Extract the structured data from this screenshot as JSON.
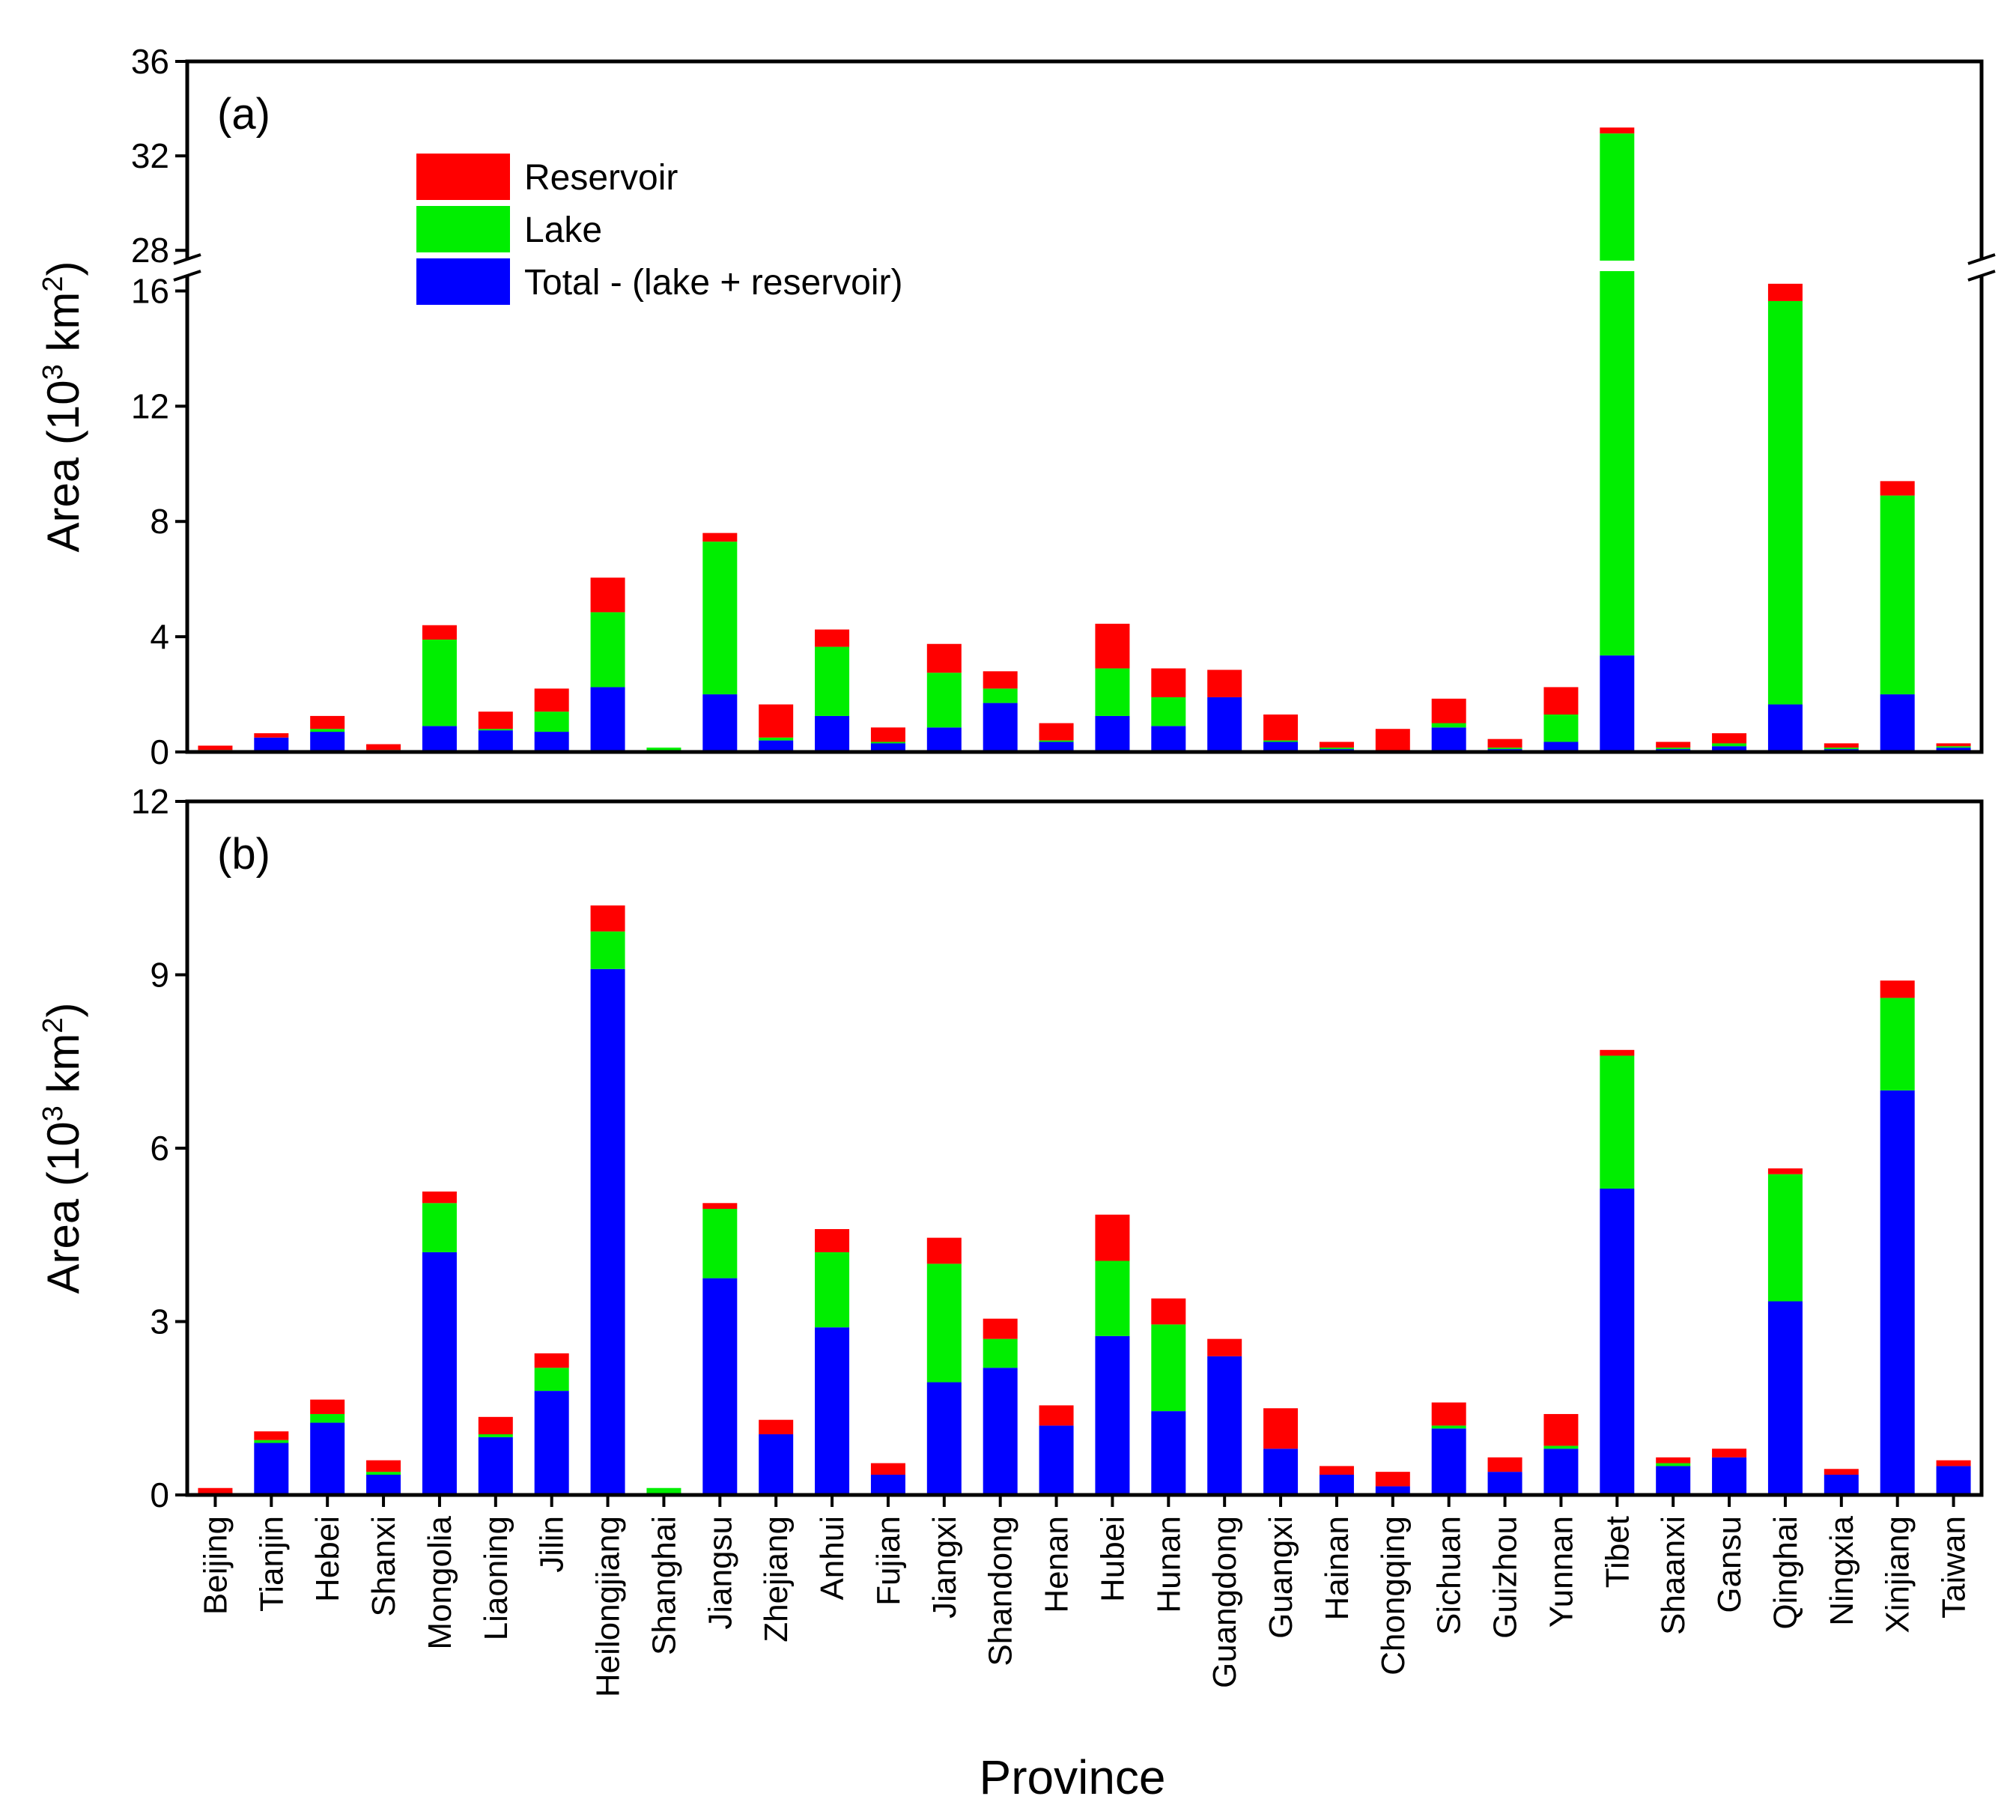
{
  "chart_data": {
    "type": "bar",
    "stacked": true,
    "xlabel": "Province",
    "categories": [
      "Beijing",
      "Tianjin",
      "Hebei",
      "Shanxi",
      "Mongolia",
      "Liaoning",
      "Jilin",
      "Heilongjiang",
      "Shanghai",
      "Jiangsu",
      "Zhejiang",
      "Anhui",
      "Fujian",
      "Jiangxi",
      "Shandong",
      "Henan",
      "Hubei",
      "Hunan",
      "Guangdong",
      "Guangxi",
      "Hainan",
      "Chongqing",
      "Sichuan",
      "Guizhou",
      "Yunnan",
      "Tibet",
      "Shaanxi",
      "Gansu",
      "Qinghai",
      "Ningxia",
      "Xinjiang",
      "Taiwan"
    ],
    "legend": {
      "position": "top-left",
      "entries": [
        {
          "name": "Reservoir",
          "color": "#ff0000"
        },
        {
          "name": "Lake",
          "color": "#00ee00"
        },
        {
          "name": "Total - (lake + reservoir)",
          "color": "#0000ff"
        }
      ]
    },
    "panels": [
      {
        "label": "(a)",
        "ylabel_main": "Area (10",
        "ylabel_sup": "3",
        "ylabel_unit": " km",
        "ylabel_sup2": "2",
        "ylabel_end": ")",
        "axis_break": {
          "lower": [
            0,
            17
          ],
          "upper": [
            27.5,
            36
          ]
        },
        "yticks": [
          "0",
          "4",
          "8",
          "12",
          "16",
          "28",
          "32",
          "36"
        ],
        "series": [
          {
            "name": "Total - (lake + reservoir)",
            "values": [
              0.05,
              0.5,
              0.7,
              0.05,
              0.9,
              0.75,
              0.7,
              2.25,
              0.05,
              2.0,
              0.4,
              1.25,
              0.3,
              0.85,
              1.7,
              0.35,
              1.25,
              0.9,
              1.9,
              0.35,
              0.1,
              0.05,
              0.85,
              0.1,
              0.35,
              3.35,
              0.1,
              0.2,
              1.65,
              0.1,
              2.0,
              0.15
            ]
          },
          {
            "name": "Lake",
            "values": [
              0.02,
              0.0,
              0.1,
              0.02,
              3.0,
              0.05,
              0.7,
              2.6,
              0.1,
              5.3,
              0.1,
              2.4,
              0.05,
              1.9,
              0.5,
              0.05,
              1.65,
              1.0,
              0.0,
              0.05,
              0.05,
              0.0,
              0.15,
              0.05,
              0.95,
              29.6,
              0.05,
              0.1,
              14.0,
              0.05,
              6.9,
              0.05
            ]
          },
          {
            "name": "Reservoir",
            "values": [
              0.15,
              0.15,
              0.45,
              0.2,
              0.5,
              0.6,
              0.8,
              1.2,
              0.0,
              0.3,
              1.15,
              0.6,
              0.5,
              1.0,
              0.6,
              0.6,
              1.55,
              1.0,
              0.95,
              0.9,
              0.2,
              0.75,
              0.85,
              0.3,
              0.95,
              0.25,
              0.2,
              0.35,
              0.6,
              0.15,
              0.5,
              0.1
            ]
          }
        ]
      },
      {
        "label": "(b)",
        "ylabel_main": "Area (10",
        "ylabel_sup": "3",
        "ylabel_unit": " km",
        "ylabel_sup2": "2",
        "ylabel_end": ")",
        "ylim": [
          0,
          12
        ],
        "yticks": [
          "0",
          "3",
          "6",
          "9",
          "12"
        ],
        "series": [
          {
            "name": "Total - (lake + reservoir)",
            "values": [
              0.02,
              0.9,
              1.25,
              0.35,
              4.2,
              1.0,
              1.8,
              9.1,
              0.02,
              3.75,
              1.05,
              2.9,
              0.35,
              1.95,
              2.2,
              1.2,
              2.75,
              1.45,
              2.4,
              0.8,
              0.35,
              0.15,
              1.15,
              0.4,
              0.8,
              5.3,
              0.5,
              0.65,
              3.35,
              0.35,
              7.0,
              0.5
            ]
          },
          {
            "name": "Lake",
            "values": [
              0.0,
              0.05,
              0.15,
              0.05,
              0.85,
              0.05,
              0.4,
              0.65,
              0.1,
              1.2,
              0.0,
              1.3,
              0.0,
              2.05,
              0.5,
              0.0,
              1.3,
              1.5,
              0.0,
              0.0,
              0.0,
              0.0,
              0.05,
              0.0,
              0.05,
              2.3,
              0.05,
              0.0,
              2.2,
              0.0,
              1.6,
              0.0
            ]
          },
          {
            "name": "Reservoir",
            "values": [
              0.1,
              0.15,
              0.25,
              0.2,
              0.2,
              0.3,
              0.25,
              0.45,
              0.0,
              0.1,
              0.25,
              0.4,
              0.2,
              0.45,
              0.35,
              0.35,
              0.8,
              0.45,
              0.3,
              0.7,
              0.15,
              0.25,
              0.4,
              0.25,
              0.55,
              0.1,
              0.1,
              0.15,
              0.1,
              0.1,
              0.3,
              0.1
            ]
          }
        ]
      }
    ]
  }
}
